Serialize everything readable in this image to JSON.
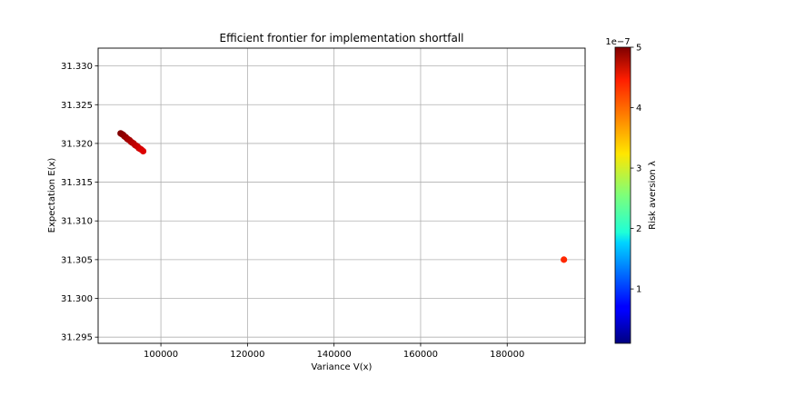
{
  "chart_data": {
    "type": "scatter",
    "title": "Efficient frontier for implementation shortfall",
    "xlabel": "Variance V(x)",
    "ylabel": "Expectation E(x)",
    "xlim": [
      85500,
      198000
    ],
    "ylim": [
      31.2942,
      31.3323
    ],
    "grid": true,
    "x_ticks": [
      100000,
      120000,
      140000,
      160000,
      180000
    ],
    "x_tick_labels": [
      "100000",
      "120000",
      "140000",
      "160000",
      "180000"
    ],
    "y_ticks": [
      31.295,
      31.3,
      31.305,
      31.31,
      31.315,
      31.32,
      31.325,
      31.33
    ],
    "y_tick_labels": [
      "31.295",
      "31.300",
      "31.305",
      "31.310",
      "31.315",
      "31.320",
      "31.325",
      "31.330"
    ],
    "points": [
      {
        "x": 90700,
        "y": 31.3213,
        "lambda": 5e-07
      },
      {
        "x": 91000,
        "y": 31.3212,
        "lambda": 4.97e-07
      },
      {
        "x": 91300,
        "y": 31.3211,
        "lambda": 4.95e-07
      },
      {
        "x": 91600,
        "y": 31.3209,
        "lambda": 4.92e-07
      },
      {
        "x": 91900,
        "y": 31.3208,
        "lambda": 4.9e-07
      },
      {
        "x": 92200,
        "y": 31.3206,
        "lambda": 4.87e-07
      },
      {
        "x": 92500,
        "y": 31.3205,
        "lambda": 4.84e-07
      },
      {
        "x": 92800,
        "y": 31.3204,
        "lambda": 4.82e-07
      },
      {
        "x": 93100,
        "y": 31.3202,
        "lambda": 4.79e-07
      },
      {
        "x": 93400,
        "y": 31.3201,
        "lambda": 4.77e-07
      },
      {
        "x": 93700,
        "y": 31.32,
        "lambda": 4.74e-07
      },
      {
        "x": 94000,
        "y": 31.3198,
        "lambda": 4.71e-07
      },
      {
        "x": 94300,
        "y": 31.3197,
        "lambda": 4.69e-07
      },
      {
        "x": 94600,
        "y": 31.3196,
        "lambda": 4.66e-07
      },
      {
        "x": 94900,
        "y": 31.3194,
        "lambda": 4.64e-07
      },
      {
        "x": 95200,
        "y": 31.3193,
        "lambda": 4.61e-07
      },
      {
        "x": 95500,
        "y": 31.3192,
        "lambda": 4.58e-07
      },
      {
        "x": 95900,
        "y": 31.319,
        "lambda": 4.55e-07
      },
      {
        "x": 193100,
        "y": 31.305,
        "lambda": 4.2e-07
      }
    ],
    "colorbar": {
      "label": "Risk aversion λ",
      "colormap": "jet",
      "range": [
        1e-08,
        5e-07
      ],
      "ticks": [
        1,
        2,
        3,
        4,
        5
      ],
      "tick_labels": [
        "1",
        "2",
        "3",
        "4",
        "5"
      ],
      "offset_text": "1e−7"
    }
  }
}
